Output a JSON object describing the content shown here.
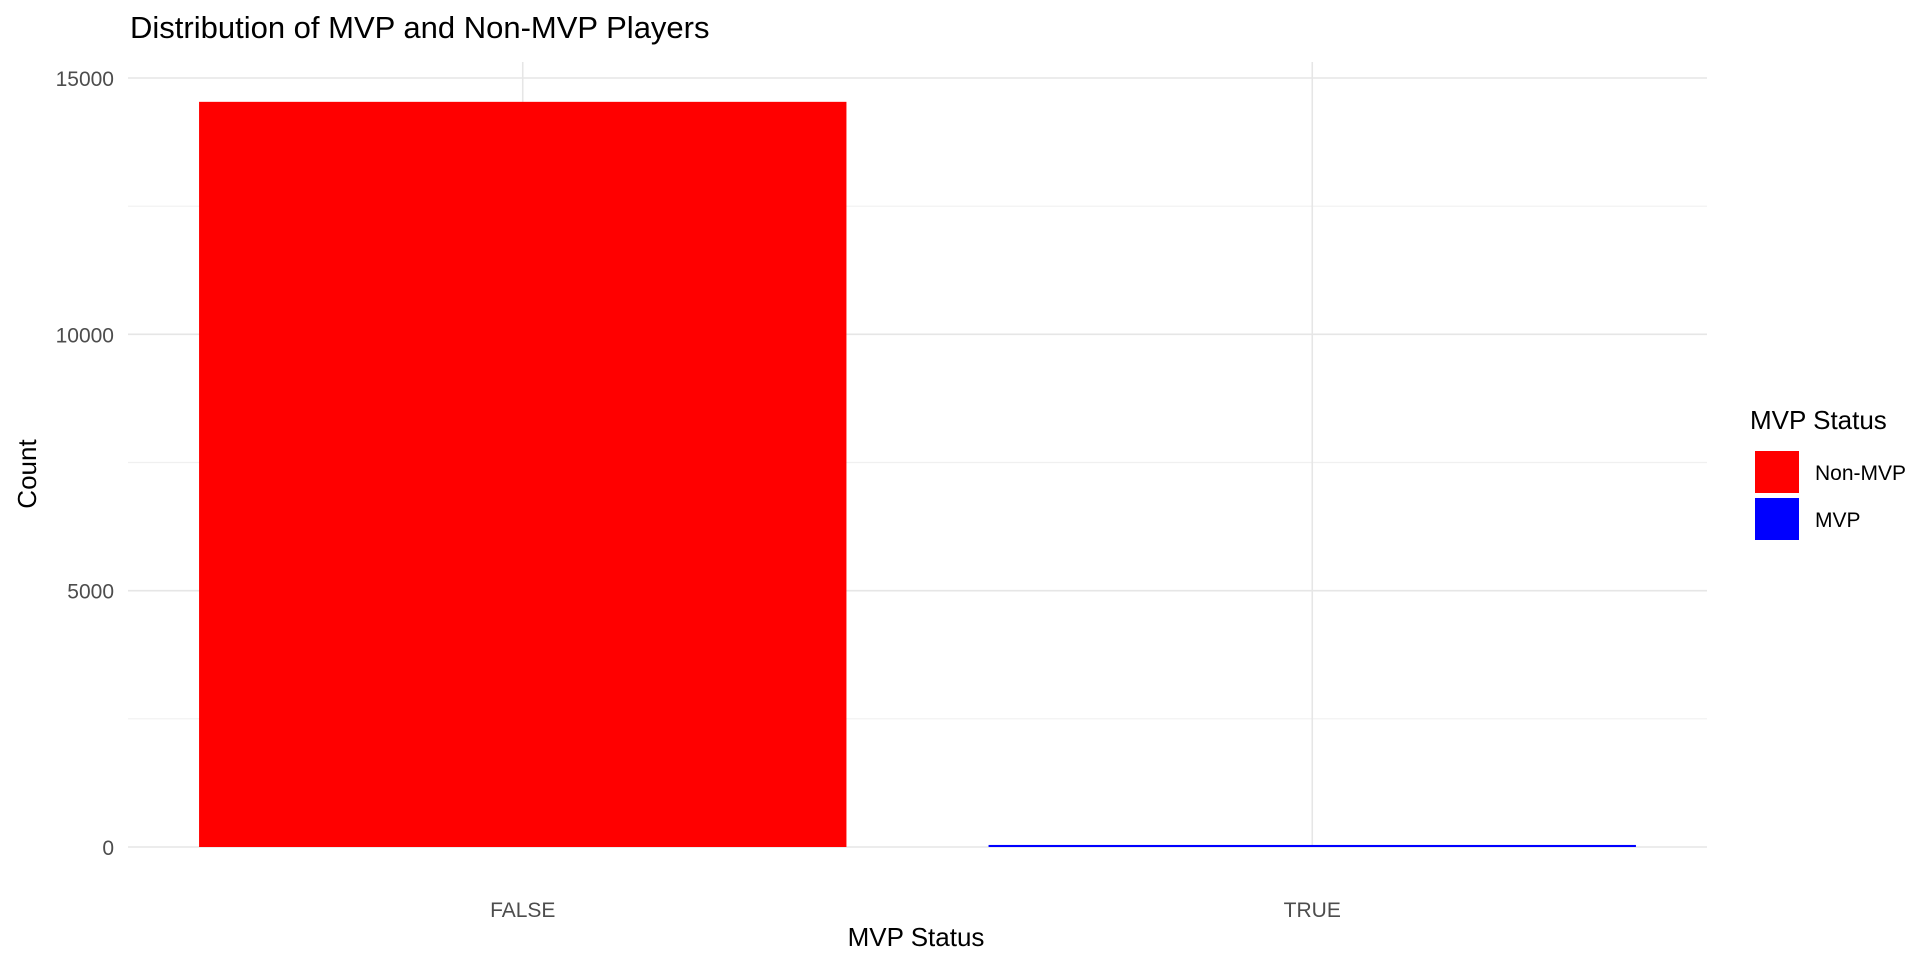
{
  "chart_data": {
    "type": "bar",
    "title": "Distribution of MVP and Non-MVP Players",
    "xlabel": "MVP Status",
    "ylabel": "Count",
    "categories": [
      "FALSE",
      "TRUE"
    ],
    "values": [
      14535,
      40
    ],
    "bar_colors": [
      "#ff0000",
      "#0000ff"
    ],
    "ylim": [
      0,
      15000
    ],
    "yticks": [
      0,
      5000,
      10000,
      15000
    ],
    "ytick_labels": [
      "0",
      "5000",
      "10000",
      "15000"
    ],
    "grid": true,
    "legend": {
      "title": "MVP Status",
      "placement": "right",
      "items": [
        {
          "label": "Non-MVP",
          "color": "#ff0000"
        },
        {
          "label": "MVP",
          "color": "#0000ff"
        }
      ]
    }
  }
}
